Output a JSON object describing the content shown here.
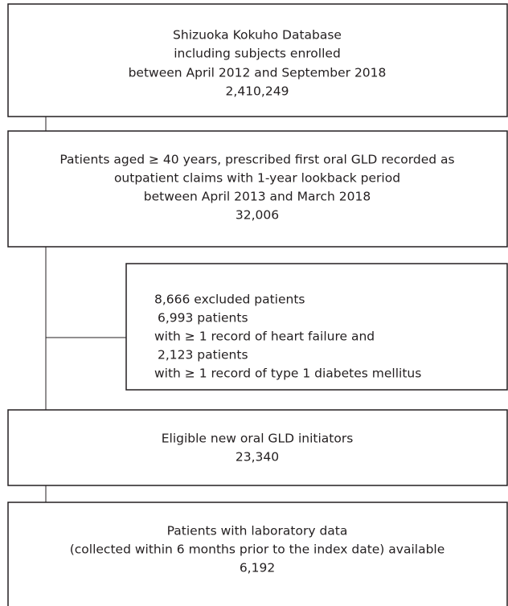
{
  "nodes": [
    {
      "lines": [
        "Shizuoka Kokuho Database",
        "including subjects enrolled",
        "between April 2012 and September 2018",
        "2,410,249"
      ]
    },
    {
      "lines": [
        "Patients aged ≥ 40 years, prescribed first oral GLD recorded as",
        "outpatient claims with 1-year lookback period",
        "between April 2013 and March 2018",
        "32,006"
      ]
    },
    {
      "lines": [
        "8,666 excluded patients",
        "6,993 patients",
        "with ≥ 1 record of heart failure and",
        "2,123 patients",
        "with ≥ 1 record of type 1 diabetes mellitus"
      ]
    },
    {
      "lines": [
        "Eligible new oral GLD initiators",
        "23,340"
      ]
    },
    {
      "lines": [
        "Patients with laboratory data",
        "(collected within 6 months prior to the index date) available",
        "6,192"
      ]
    }
  ]
}
